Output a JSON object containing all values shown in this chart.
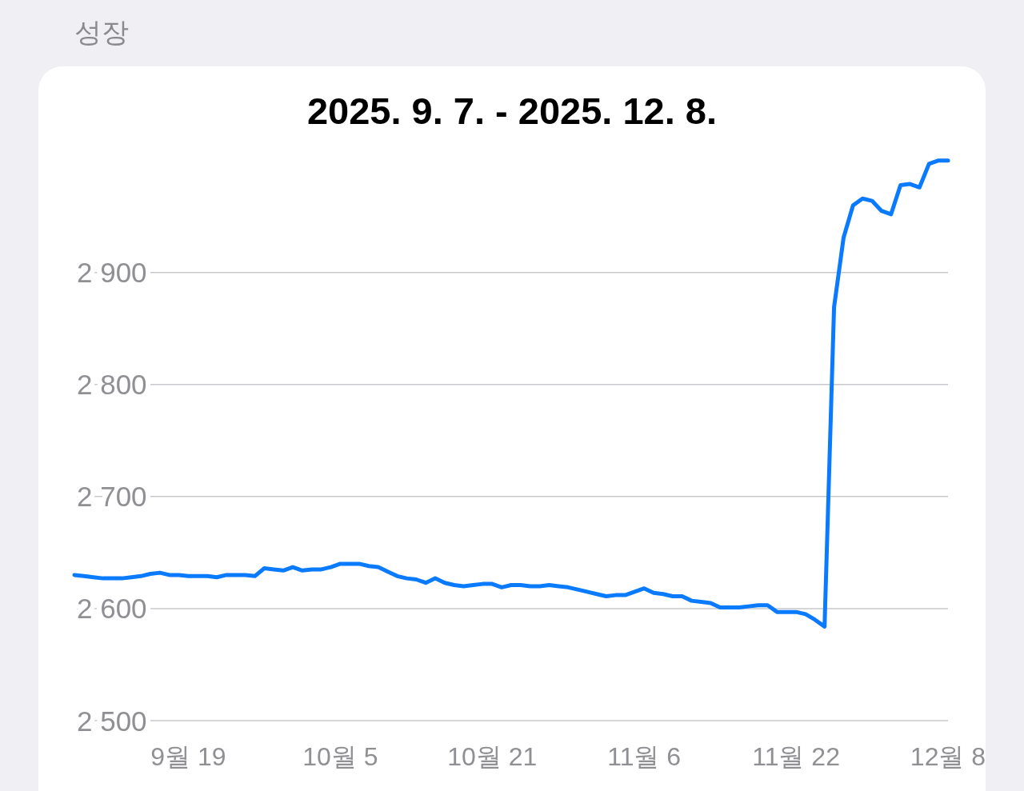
{
  "chart_data": {
    "type": "line",
    "title": "성장",
    "subtitle": "2025. 9. 7. - 2025. 12. 8.",
    "color": "#0a7aff",
    "grid": "y",
    "line_style": "solid",
    "x": [
      "2025-09-07",
      "2025-09-08",
      "2025-09-09",
      "2025-09-10",
      "2025-09-11",
      "2025-09-12",
      "2025-09-13",
      "2025-09-14",
      "2025-09-15",
      "2025-09-16",
      "2025-09-17",
      "2025-09-18",
      "2025-09-19",
      "2025-09-20",
      "2025-09-21",
      "2025-09-22",
      "2025-09-23",
      "2025-09-24",
      "2025-09-25",
      "2025-09-26",
      "2025-09-27",
      "2025-09-28",
      "2025-09-29",
      "2025-09-30",
      "2025-10-01",
      "2025-10-02",
      "2025-10-03",
      "2025-10-04",
      "2025-10-05",
      "2025-10-06",
      "2025-10-07",
      "2025-10-08",
      "2025-10-09",
      "2025-10-10",
      "2025-10-11",
      "2025-10-12",
      "2025-10-13",
      "2025-10-14",
      "2025-10-15",
      "2025-10-16",
      "2025-10-17",
      "2025-10-18",
      "2025-10-19",
      "2025-10-20",
      "2025-10-21",
      "2025-10-22",
      "2025-10-23",
      "2025-10-24",
      "2025-10-25",
      "2025-10-26",
      "2025-10-27",
      "2025-10-28",
      "2025-10-29",
      "2025-10-30",
      "2025-10-31",
      "2025-11-01",
      "2025-11-02",
      "2025-11-03",
      "2025-11-04",
      "2025-11-05",
      "2025-11-06",
      "2025-11-07",
      "2025-11-08",
      "2025-11-09",
      "2025-11-10",
      "2025-11-11",
      "2025-11-12",
      "2025-11-13",
      "2025-11-14",
      "2025-11-15",
      "2025-11-16",
      "2025-11-17",
      "2025-11-18",
      "2025-11-19",
      "2025-11-20",
      "2025-11-21",
      "2025-11-22",
      "2025-11-23",
      "2025-11-24",
      "2025-11-25",
      "2025-11-26",
      "2025-11-27",
      "2025-11-28",
      "2025-11-29",
      "2025-11-30",
      "2025-12-01",
      "2025-12-02",
      "2025-12-03",
      "2025-12-04",
      "2025-12-05",
      "2025-12-06",
      "2025-12-07",
      "2025-12-08"
    ],
    "values": [
      2630,
      2629,
      2628,
      2627,
      2627,
      2627,
      2628,
      2629,
      2631,
      2632,
      2630,
      2630,
      2629,
      2629,
      2629,
      2628,
      2630,
      2630,
      2630,
      2629,
      2636,
      2635,
      2634,
      2637,
      2634,
      2635,
      2635,
      2637,
      2640,
      2640,
      2640,
      2638,
      2637,
      2633,
      2629,
      2627,
      2626,
      2623,
      2627,
      2623,
      2621,
      2620,
      2621,
      2622,
      2622,
      2619,
      2621,
      2621,
      2620,
      2620,
      2621,
      2620,
      2619,
      2617,
      2615,
      2613,
      2611,
      2612,
      2612,
      2615,
      2618,
      2614,
      2613,
      2611,
      2611,
      2607,
      2606,
      2605,
      2601,
      2601,
      2601,
      2602,
      2603,
      2603,
      2597,
      2597,
      2597,
      2595,
      2590,
      2584,
      2869,
      2931,
      2960,
      2966,
      2964,
      2955,
      2952,
      2978,
      2979,
      2976,
      2997,
      3000,
      3000
    ],
    "xlim": [
      "2025-09-07",
      "2025-12-08"
    ],
    "xticks": [
      {
        "value": "2025-09-19",
        "label": "9월 19"
      },
      {
        "value": "2025-10-05",
        "label": "10월 5"
      },
      {
        "value": "2025-10-21",
        "label": "10월 21"
      },
      {
        "value": "2025-11-06",
        "label": "11월 6"
      },
      {
        "value": "2025-11-22",
        "label": "11월 22"
      },
      {
        "value": "2025-12-08",
        "label": "12월 8"
      }
    ],
    "ylim": [
      2500,
      3084
    ],
    "yticks": [
      {
        "value": 2500,
        "label": "2 500"
      },
      {
        "value": 2600,
        "label": "2 600"
      },
      {
        "value": 2700,
        "label": "2 700"
      },
      {
        "value": 2800,
        "label": "2 800"
      },
      {
        "value": 2900,
        "label": "2 900"
      }
    ]
  }
}
